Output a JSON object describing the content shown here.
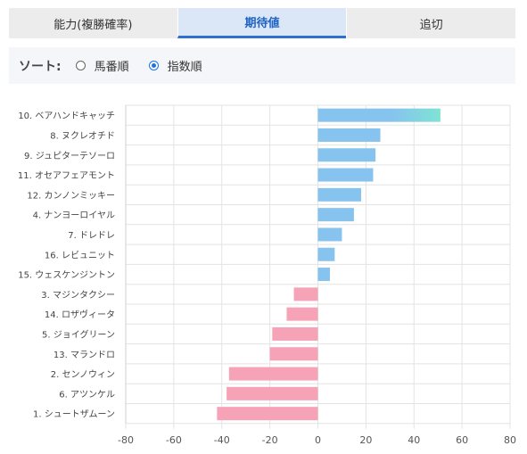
{
  "tabs": [
    {
      "label": "能力(複勝確率)",
      "active": false
    },
    {
      "label": "期待値",
      "active": true
    },
    {
      "label": "追切",
      "active": false
    }
  ],
  "sort": {
    "label": "ソート:",
    "options": [
      {
        "label": "馬番順",
        "checked": false
      },
      {
        "label": "指数順",
        "checked": true
      }
    ]
  },
  "chart_data": {
    "type": "bar",
    "orientation": "horizontal",
    "categories": [
      "10. ベアハンドキャッチ",
      "8. ヌクレオチド",
      "9. ジュピターテソーロ",
      "11. オセアフェアモント",
      "12. カンノンミッキー",
      "4. ナンヨーロイヤル",
      "7. ドレドレ",
      "16. レビュニット",
      "15. ウェスケンジントン",
      "3. マジンタクシー",
      "14. ロザヴィータ",
      "5. ジョイグリーン",
      "13. マランドロ",
      "2. センノウィン",
      "6. アツンケル",
      "1. シュートザムーン"
    ],
    "values": [
      51,
      26,
      24,
      23,
      18,
      15,
      10,
      7,
      5,
      -10,
      -13,
      -19,
      -20,
      -37,
      -38,
      -42
    ],
    "xlim": [
      -80,
      80
    ],
    "xticks": [
      "-80",
      "-60",
      "-40",
      "-20",
      "0",
      "20",
      "40",
      "60",
      "80"
    ],
    "grid": true,
    "colors": {
      "positive": "#86c3ef",
      "positive_highlight": "#7fe3d3",
      "negative": "#f7a3b7"
    }
  }
}
